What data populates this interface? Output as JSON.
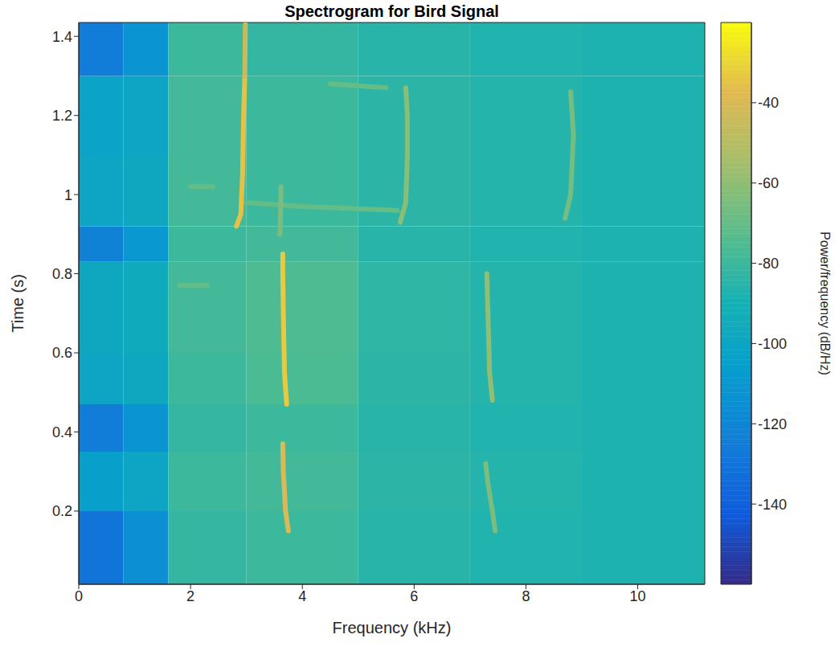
{
  "chart_data": {
    "type": "heatmap",
    "title": "Spectrogram for Bird Signal",
    "x_label": "Frequency (kHz)",
    "y_label": "Time (s)",
    "xlim": [
      0,
      11.2
    ],
    "xticks": [
      0,
      2,
      4,
      6,
      8,
      10
    ],
    "ylim": [
      0.015,
      1.435
    ],
    "yticks": [
      0.2,
      0.4,
      0.6,
      0.8,
      1,
      1.2,
      1.4
    ],
    "x_bins": [
      0,
      0.8,
      1.6,
      3,
      5,
      7,
      9,
      11.2
    ],
    "y_bins": [
      0.015,
      0.2,
      0.35,
      0.47,
      0.6,
      0.83,
      0.92,
      1.1,
      1.3,
      1.435
    ],
    "cells": [
      [
        -130,
        -115,
        -82,
        -80,
        -85,
        -87,
        -88
      ],
      [
        -105,
        -100,
        -80,
        -78,
        -84,
        -86,
        -88
      ],
      [
        -125,
        -112,
        -82,
        -80,
        -85,
        -87,
        -88
      ],
      [
        -100,
        -98,
        -80,
        -76,
        -84,
        -86,
        -88
      ],
      [
        -98,
        -96,
        -78,
        -75,
        -83,
        -86,
        -88
      ],
      [
        -122,
        -110,
        -80,
        -78,
        -85,
        -87,
        -88
      ],
      [
        -100,
        -98,
        -78,
        -80,
        -84,
        -86,
        -88
      ],
      [
        -102,
        -100,
        -78,
        -80,
        -84,
        -86,
        -88
      ],
      [
        -125,
        -112,
        -80,
        -82,
        -85,
        -87,
        -88
      ]
    ],
    "tracks": [
      {
        "x": [
          2.82,
          2.9,
          2.93,
          2.95,
          2.97
        ],
        "y": [
          0.92,
          0.95,
          1.05,
          1.2,
          1.3
        ],
        "level": -35
      },
      {
        "x": [
          2.97,
          2.98
        ],
        "y": [
          1.3,
          1.43
        ],
        "level": -45
      },
      {
        "x": [
          3.72,
          3.68,
          3.66,
          3.65,
          3.65
        ],
        "y": [
          0.47,
          0.55,
          0.7,
          0.8,
          0.85
        ],
        "level": -33
      },
      {
        "x": [
          3.75,
          3.7,
          3.66,
          3.65
        ],
        "y": [
          0.15,
          0.2,
          0.3,
          0.37
        ],
        "level": -40
      },
      {
        "x": [
          5.75,
          5.85,
          5.88,
          5.88,
          5.85
        ],
        "y": [
          0.93,
          0.98,
          1.1,
          1.2,
          1.27
        ],
        "level": -62
      },
      {
        "x": [
          7.4,
          7.35,
          7.32,
          7.3
        ],
        "y": [
          0.48,
          0.55,
          0.7,
          0.8
        ],
        "level": -60
      },
      {
        "x": [
          7.45,
          7.4,
          7.32,
          7.28
        ],
        "y": [
          0.15,
          0.2,
          0.27,
          0.32
        ],
        "level": -65
      },
      {
        "x": [
          8.7,
          8.8,
          8.85,
          8.8
        ],
        "y": [
          0.94,
          1.0,
          1.15,
          1.26
        ],
        "level": -66
      },
      {
        "x": [
          3.0,
          4.0,
          5.7
        ],
        "y": [
          0.98,
          0.97,
          0.96
        ],
        "level": -70
      },
      {
        "x": [
          4.5,
          5.5
        ],
        "y": [
          1.28,
          1.27
        ],
        "level": -70
      },
      {
        "x": [
          3.6,
          3.62
        ],
        "y": [
          0.9,
          1.02
        ],
        "level": -65
      },
      {
        "x": [
          2.0,
          2.4
        ],
        "y": [
          1.02,
          1.02
        ],
        "level": -70
      },
      {
        "x": [
          1.8,
          2.3
        ],
        "y": [
          0.77,
          0.77
        ],
        "level": -70
      }
    ],
    "colorbar": {
      "label": "Power/frequency (dB/Hz)",
      "range": [
        -160,
        -20
      ],
      "ticks": [
        -140,
        -120,
        -100,
        -80,
        -60,
        -40
      ]
    }
  }
}
